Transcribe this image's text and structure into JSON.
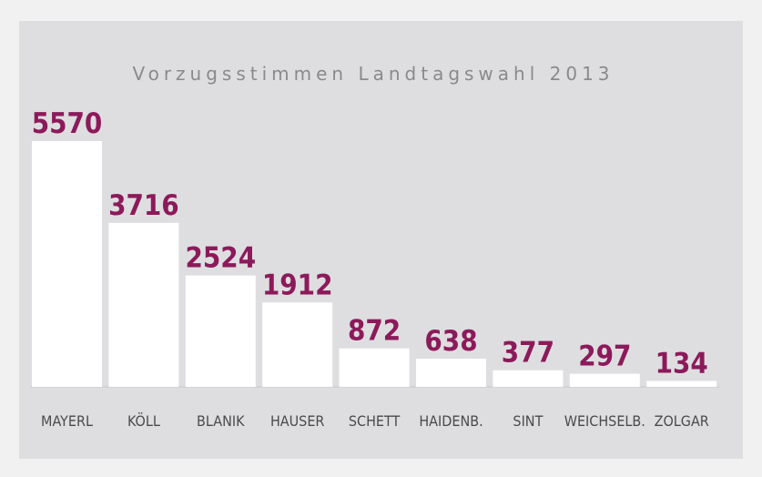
{
  "chart_data": {
    "type": "bar",
    "title": "Vorzugsstimmen Landtagswahl 2013",
    "categories": [
      "MAYERL",
      "KÖLL",
      "BLANIK",
      "HAUSER",
      "SCHETT",
      "HAIDENB.",
      "SINT",
      "WEICHSELB.",
      "ZOLGAR"
    ],
    "values": [
      5570,
      3716,
      2524,
      1912,
      872,
      638,
      377,
      297,
      134
    ],
    "xlabel": "",
    "ylabel": "",
    "ylim": [
      0,
      5570
    ],
    "grid": false,
    "legend": "none",
    "colors": {
      "bar": "#ffffff",
      "value_label": "#8c1a5a",
      "background": "#dedee0",
      "page": "#f1f1f1",
      "title": "#8a8a8a",
      "category_label": "#4a4a4a"
    }
  }
}
